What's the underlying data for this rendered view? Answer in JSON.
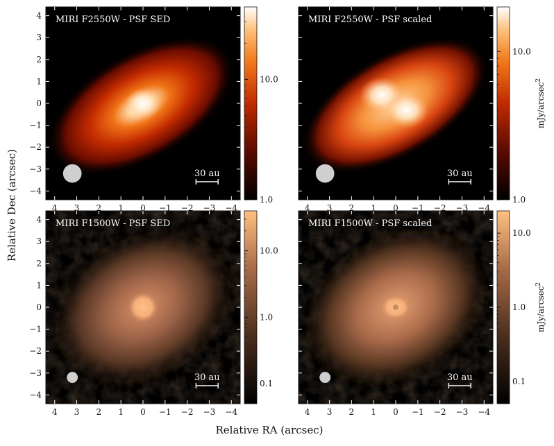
{
  "figure": {
    "xlabel": "Relative RA (arcsec)",
    "ylabel": "Relative Dec (arcsec)",
    "unit_label": "mJy/arcsec",
    "unit_superscript": "2",
    "scale_bar_label": "30 au"
  },
  "chart_data": [
    {
      "type": "heatmap",
      "title": "MIRI F2550W - PSF SED",
      "xlabel": "Relative RA (arcsec)",
      "ylabel": "Relative Dec (arcsec)",
      "xlim": [
        4.4,
        -4.4
      ],
      "ylim": [
        -4.4,
        4.4
      ],
      "x_ticks": [
        "4",
        "3",
        "2",
        "1",
        "0",
        "−1",
        "−2",
        "−3",
        "−4"
      ],
      "y_ticks": [
        "−4",
        "−3",
        "−2",
        "−1",
        "0",
        "1",
        "2",
        "3",
        "4"
      ],
      "colorbar": {
        "scale": "log",
        "range": [
          1.0,
          40.0
        ],
        "ticks": [
          "1.0",
          "10.0"
        ],
        "colormap": "gist_heat"
      },
      "beam": {
        "x": 3.2,
        "y": -3.2,
        "radius_arcsec": 0.42
      },
      "scale_bar_arcsec": [
        -2.4,
        -3.4
      ]
    },
    {
      "type": "heatmap",
      "title": "MIRI F2550W - PSF scaled",
      "xlabel": "Relative RA (arcsec)",
      "ylabel": "Relative Dec (arcsec)",
      "xlim": [
        4.4,
        -4.4
      ],
      "ylim": [
        -4.4,
        4.4
      ],
      "x_ticks": [
        "4",
        "3",
        "2",
        "1",
        "0",
        "−1",
        "−2",
        "−3",
        "−4"
      ],
      "y_ticks": [
        "−4",
        "−3",
        "−2",
        "−1",
        "0",
        "1",
        "2",
        "3",
        "4"
      ],
      "colorbar": {
        "scale": "log",
        "range": [
          1.0,
          20.0
        ],
        "ticks": [
          "1.0",
          "10.0"
        ],
        "colormap": "gist_heat",
        "label": "mJy/arcsec²"
      },
      "beam": {
        "x": 3.2,
        "y": -3.2,
        "radius_arcsec": 0.42
      },
      "scale_bar_arcsec": [
        -2.4,
        -3.4
      ]
    },
    {
      "type": "heatmap",
      "title": "MIRI F1500W - PSF SED",
      "xlabel": "Relative RA (arcsec)",
      "ylabel": "Relative Dec (arcsec)",
      "xlim": [
        4.4,
        -4.4
      ],
      "ylim": [
        -4.4,
        4.4
      ],
      "x_ticks": [
        "4",
        "3",
        "2",
        "1",
        "0",
        "−1",
        "−2",
        "−3",
        "−4"
      ],
      "y_ticks": [
        "−4",
        "−3",
        "−2",
        "−1",
        "0",
        "1",
        "2",
        "3",
        "4"
      ],
      "colorbar": {
        "scale": "log",
        "range": [
          0.05,
          40.0
        ],
        "ticks": [
          "0.1",
          "1.0",
          "10.0"
        ],
        "colormap": "copper"
      },
      "beam": {
        "x": 3.2,
        "y": -3.2,
        "radius_arcsec": 0.25
      },
      "scale_bar_arcsec": [
        -2.4,
        -3.4
      ]
    },
    {
      "type": "heatmap",
      "title": "MIRI F1500W - PSF scaled",
      "xlabel": "Relative RA (arcsec)",
      "ylabel": "Relative Dec (arcsec)",
      "xlim": [
        4.4,
        -4.4
      ],
      "ylim": [
        -4.4,
        4.4
      ],
      "x_ticks": [
        "4",
        "3",
        "2",
        "1",
        "0",
        "−1",
        "−2",
        "−3",
        "−4"
      ],
      "y_ticks": [
        "−4",
        "−3",
        "−2",
        "−1",
        "0",
        "1",
        "2",
        "3",
        "4"
      ],
      "colorbar": {
        "scale": "log",
        "range": [
          0.05,
          20.0
        ],
        "ticks": [
          "0.1",
          "1.0",
          "10.0"
        ],
        "colormap": "copper",
        "label": "mJy/arcsec²"
      },
      "beam": {
        "x": 3.2,
        "y": -3.2,
        "radius_arcsec": 0.25
      },
      "scale_bar_arcsec": [
        -2.4,
        -3.4
      ]
    }
  ]
}
